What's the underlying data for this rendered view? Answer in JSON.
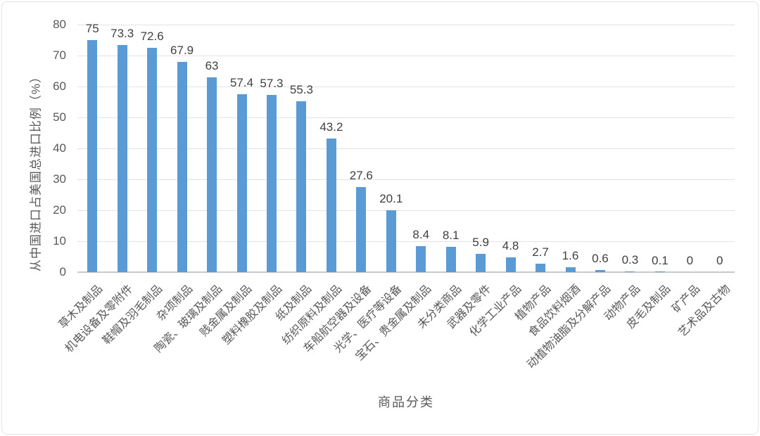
{
  "chart_data": {
    "type": "bar",
    "title": "",
    "xlabel": "商品分类",
    "ylabel": "从中国进口占美国总进口比例（%）",
    "categories": [
      "草木及制品",
      "机电设备及零附件",
      "鞋帽及羽毛制品",
      "杂项制品",
      "陶瓷、玻璃及制品",
      "贱金属及制品",
      "塑料橡胶及制品",
      "纸及制品",
      "纺织原料及制品",
      "车船航空器及设备",
      "光学、医疗等设备",
      "宝石、贵金属及制品",
      "未分类商品",
      "武器及零件",
      "化学工业产品",
      "植物产品",
      "食品饮料烟酒",
      "动植物油脂及分解产品",
      "动物产品",
      "皮毛及制品",
      "矿产品",
      "艺术品及古物"
    ],
    "values": [
      75,
      73.3,
      72.6,
      67.9,
      63,
      57.4,
      57.3,
      55.3,
      43.2,
      27.6,
      20.1,
      8.4,
      8.1,
      5.9,
      4.8,
      2.7,
      1.6,
      0.6,
      0.3,
      0.1,
      0,
      0
    ],
    "ylim": [
      0,
      80
    ],
    "yticks": [
      0,
      10,
      20,
      30,
      40,
      50,
      60,
      70,
      80
    ],
    "grid": true,
    "legend": "none",
    "data_labels": true
  },
  "colors": {
    "bar": "#5B9BD5",
    "axis_text": "#595959",
    "data_label_text": "#404040",
    "gridline": "#e3e3e3",
    "axis_line": "#c9c9c9"
  }
}
